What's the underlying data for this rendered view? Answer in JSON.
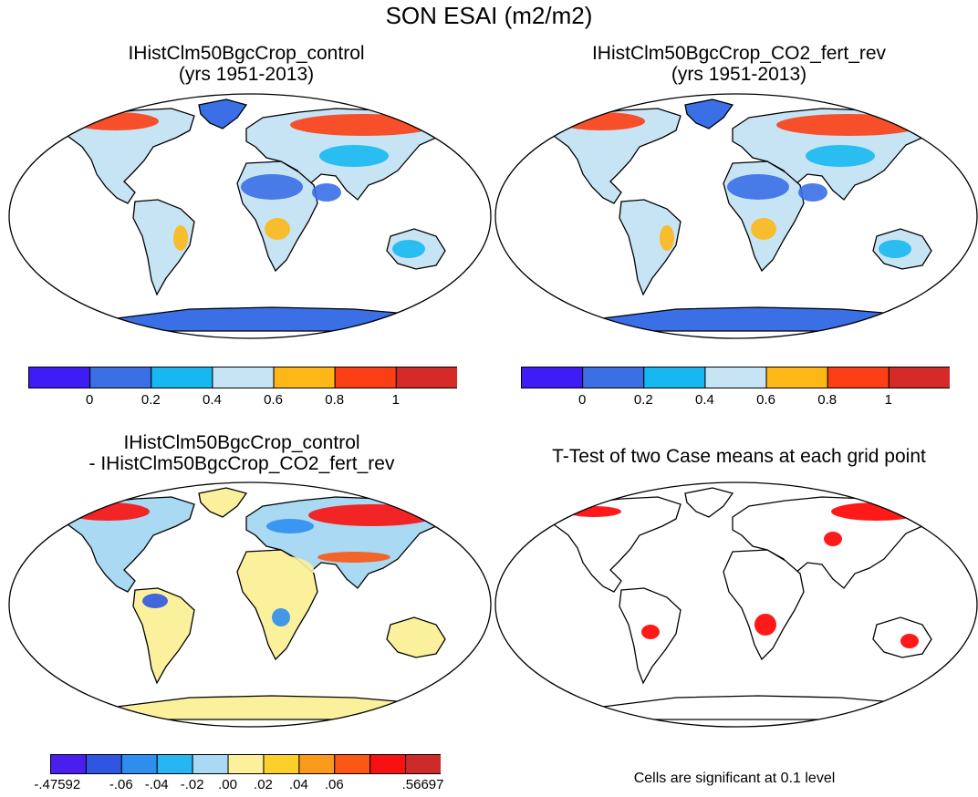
{
  "title": "SON ESAI (m2/m2)",
  "panels": [
    {
      "id": "control",
      "title_line1": "IHistClm50BgcCrop_control",
      "title_line2": "(yrs 1951-2013)"
    },
    {
      "id": "co2",
      "title_line1": "IHistClm50BgcCrop_CO2_fert_rev",
      "title_line2": "(yrs 1951-2013)"
    },
    {
      "id": "diff",
      "title_line1": "IHistClm50BgcCrop_control",
      "title_line2": "- IHistClm50BgcCrop_CO2_fert_rev"
    },
    {
      "id": "ttest",
      "title_line1": "T-Test of two Case means at each grid point"
    }
  ],
  "colorbar_main": {
    "colors": [
      "#3d1cf5",
      "#3a6fe6",
      "#17b8f2",
      "#c7e4f5",
      "#fdb818",
      "#fc3e14",
      "#d62a28"
    ],
    "tick_labels": [
      "0",
      "0.2",
      "0.4",
      "0.6",
      "0.8",
      "1"
    ]
  },
  "colorbar_diff": {
    "colors": [
      "#4b1ef0",
      "#2f56e3",
      "#2e8ef0",
      "#28b6f2",
      "#a9d9f3",
      "#fbf19d",
      "#fccf2b",
      "#fa9a1a",
      "#fb5715",
      "#f91010",
      "#cd2a2a"
    ],
    "tick_labels": [
      "-.47592",
      "-.06",
      "-.04",
      "-.02",
      ".00",
      ".02",
      ".04",
      ".06",
      ".56697"
    ]
  },
  "significance_color": "#ff0000",
  "note": "Cells are significant at 0.1 level"
}
